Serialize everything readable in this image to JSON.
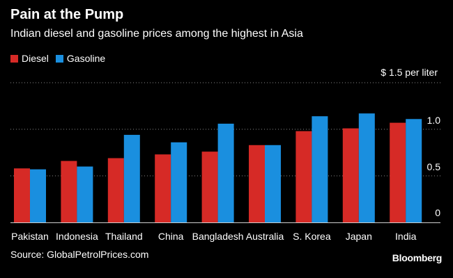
{
  "chart_data": {
    "type": "bar",
    "title": "Pain at the Pump",
    "subtitle": "Indian diesel and gasoline prices among the highest in Asia",
    "unit_label": "$ 1.5 per liter",
    "source": "Source: GlobalPetrolPrices.com",
    "brand": "Bloomberg",
    "categories": [
      "Pakistan",
      "Indonesia",
      "Thailand",
      "China",
      "Bangladesh",
      "Australia",
      "S. Korea",
      "Japan",
      "India"
    ],
    "series": [
      {
        "name": "Diesel",
        "color": "#d62a26",
        "values": [
          0.58,
          0.66,
          0.69,
          0.73,
          0.76,
          0.83,
          0.98,
          1.01,
          1.07
        ]
      },
      {
        "name": "Gasoline",
        "color": "#1a8fdf",
        "values": [
          0.57,
          0.6,
          0.94,
          0.86,
          1.06,
          0.83,
          1.14,
          1.17,
          1.11
        ]
      }
    ],
    "yticks": [
      {
        "value": 0,
        "label": "0"
      },
      {
        "value": 0.5,
        "label": "0.5"
      },
      {
        "value": 1.0,
        "label": "1.0"
      },
      {
        "value": 1.5,
        "label": ""
      }
    ],
    "ylim": [
      0,
      1.5
    ],
    "grid": true,
    "legend_position": "top-left"
  }
}
